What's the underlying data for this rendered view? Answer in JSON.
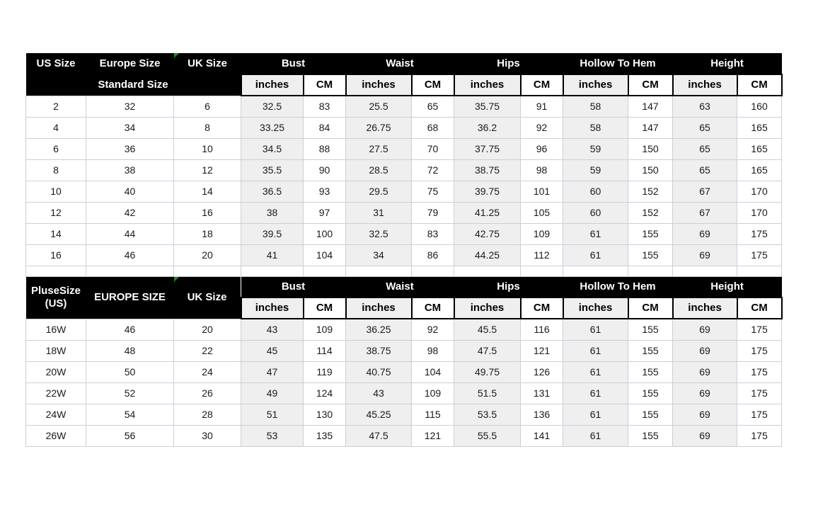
{
  "colors": {
    "header_bg": "#000000",
    "header_text": "#ffffff",
    "inches_bg": "#efefef",
    "grid_line": "#c9d0da",
    "data_text": "#1a1a1a",
    "flag_green": "#1e8a1e"
  },
  "units": {
    "inches": "inches",
    "cm": "CM"
  },
  "groups": [
    "Bust",
    "Waist",
    "Hips",
    "Hollow To Hem",
    "Height"
  ],
  "standard": {
    "col_headers": [
      "US Size",
      "Europe Size",
      "UK Size"
    ],
    "band_label": "Standard Size",
    "rows": [
      [
        "2",
        "32",
        "6",
        "32.5",
        "83",
        "25.5",
        "65",
        "35.75",
        "91",
        "58",
        "147",
        "63",
        "160"
      ],
      [
        "4",
        "34",
        "8",
        "33.25",
        "84",
        "26.75",
        "68",
        "36.2",
        "92",
        "58",
        "147",
        "65",
        "165"
      ],
      [
        "6",
        "36",
        "10",
        "34.5",
        "88",
        "27.5",
        "70",
        "37.75",
        "96",
        "59",
        "150",
        "65",
        "165"
      ],
      [
        "8",
        "38",
        "12",
        "35.5",
        "90",
        "28.5",
        "72",
        "38.75",
        "98",
        "59",
        "150",
        "65",
        "165"
      ],
      [
        "10",
        "40",
        "14",
        "36.5",
        "93",
        "29.5",
        "75",
        "39.75",
        "101",
        "60",
        "152",
        "67",
        "170"
      ],
      [
        "12",
        "42",
        "16",
        "38",
        "97",
        "31",
        "79",
        "41.25",
        "105",
        "60",
        "152",
        "67",
        "170"
      ],
      [
        "14",
        "44",
        "18",
        "39.5",
        "100",
        "32.5",
        "83",
        "42.75",
        "109",
        "61",
        "155",
        "69",
        "175"
      ],
      [
        "16",
        "46",
        "20",
        "41",
        "104",
        "34",
        "86",
        "44.25",
        "112",
        "61",
        "155",
        "69",
        "175"
      ]
    ]
  },
  "plus": {
    "col_headers": [
      "PluseSize (US)",
      "EUROPE SIZE",
      "UK Size"
    ],
    "rows": [
      [
        "16W",
        "46",
        "20",
        "43",
        "109",
        "36.25",
        "92",
        "45.5",
        "116",
        "61",
        "155",
        "69",
        "175"
      ],
      [
        "18W",
        "48",
        "22",
        "45",
        "114",
        "38.75",
        "98",
        "47.5",
        "121",
        "61",
        "155",
        "69",
        "175"
      ],
      [
        "20W",
        "50",
        "24",
        "47",
        "119",
        "40.75",
        "104",
        "49.75",
        "126",
        "61",
        "155",
        "69",
        "175"
      ],
      [
        "22W",
        "52",
        "26",
        "49",
        "124",
        "43",
        "109",
        "51.5",
        "131",
        "61",
        "155",
        "69",
        "175"
      ],
      [
        "24W",
        "54",
        "28",
        "51",
        "130",
        "45.25",
        "115",
        "53.5",
        "136",
        "61",
        "155",
        "69",
        "175"
      ],
      [
        "26W",
        "56",
        "30",
        "53",
        "135",
        "47.5",
        "121",
        "55.5",
        "141",
        "61",
        "155",
        "69",
        "175"
      ]
    ]
  }
}
